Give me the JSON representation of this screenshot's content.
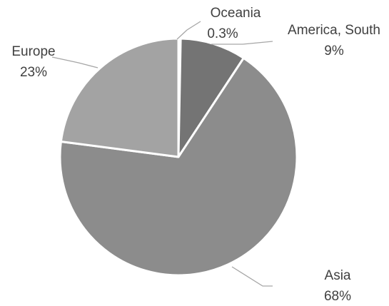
{
  "chart_data": {
    "type": "pie",
    "title": "",
    "slices": [
      {
        "label": "Oceania",
        "percent_label": "0.3%",
        "value": 0.3,
        "color": "#b0b0b0"
      },
      {
        "label": "America, South",
        "percent_label": "9%",
        "value": 9,
        "color": "#747474"
      },
      {
        "label": "Asia",
        "percent_label": "68%",
        "value": 68,
        "color": "#8c8c8c"
      },
      {
        "label": "Europe",
        "percent_label": "23%",
        "value": 23,
        "color": "#a3a3a3"
      }
    ],
    "start_angle_deg": 0,
    "direction": "clockwise",
    "separator_color": "#ffffff",
    "leader_line_color": "#a6a6a6",
    "text_color": "#404040"
  }
}
